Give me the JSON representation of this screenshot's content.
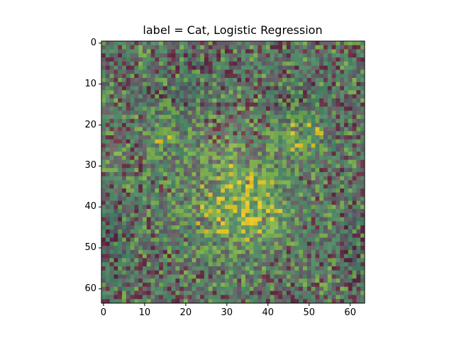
{
  "chart_data": {
    "type": "heatmap",
    "title": "label = Cat, Logistic Regression",
    "xlabel": "",
    "ylabel": "",
    "image_size": [
      64,
      64
    ],
    "xlim": [
      -0.5,
      63.5
    ],
    "ylim": [
      63.5,
      -0.5
    ],
    "x_ticks": [
      0,
      10,
      20,
      30,
      40,
      50,
      60
    ],
    "y_ticks": [
      0,
      10,
      20,
      30,
      40,
      50,
      60
    ],
    "grid": false,
    "colormap": "viridis",
    "overlay_alpha": 0.6,
    "subject": "cat face"
  }
}
